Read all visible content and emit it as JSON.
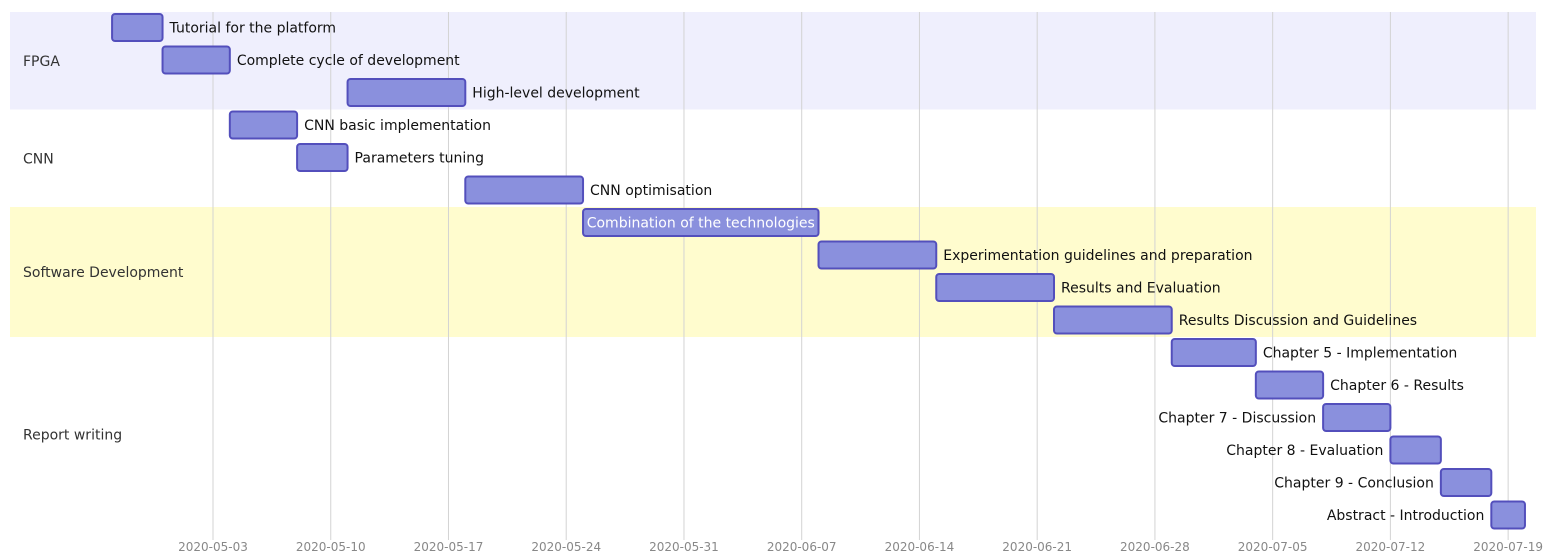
{
  "chart_data": {
    "type": "gantt",
    "title": "",
    "sections": [
      {
        "name": "FPGA",
        "color": "#efeffd"
      },
      {
        "name": "CNN",
        "color": "#ffffff"
      },
      {
        "name": "Software Development",
        "color": "#fffcce"
      },
      {
        "name": "Report writing",
        "color": "#ffffff"
      }
    ],
    "tasks": [
      {
        "name": "Tutorial for the platform",
        "section": 0,
        "start": "2020-04-27",
        "end": "2020-04-30"
      },
      {
        "name": "Complete cycle of development",
        "section": 0,
        "start": "2020-04-30",
        "end": "2020-05-04"
      },
      {
        "name": "High-level development",
        "section": 0,
        "start": "2020-05-11",
        "end": "2020-05-18"
      },
      {
        "name": "CNN basic implementation",
        "section": 1,
        "start": "2020-05-04",
        "end": "2020-05-08"
      },
      {
        "name": "Parameters tuning",
        "section": 1,
        "start": "2020-05-08",
        "end": "2020-05-11"
      },
      {
        "name": "CNN optimisation",
        "section": 1,
        "start": "2020-05-18",
        "end": "2020-05-25"
      },
      {
        "name": "Combination of the technologies",
        "section": 2,
        "start": "2020-05-25",
        "end": "2020-06-08"
      },
      {
        "name": "Experimentation guidelines and preparation",
        "section": 2,
        "start": "2020-06-08",
        "end": "2020-06-15"
      },
      {
        "name": "Results and Evaluation",
        "section": 2,
        "start": "2020-06-15",
        "end": "2020-06-22"
      },
      {
        "name": "Results Discussion and Guidelines",
        "section": 2,
        "start": "2020-06-22",
        "end": "2020-06-29"
      },
      {
        "name": "Chapter 5 - Implementation",
        "section": 3,
        "start": "2020-06-29",
        "end": "2020-07-04"
      },
      {
        "name": "Chapter 6 - Results",
        "section": 3,
        "start": "2020-07-04",
        "end": "2020-07-08"
      },
      {
        "name": "Chapter 7 - Discussion",
        "section": 3,
        "start": "2020-07-08",
        "end": "2020-07-12"
      },
      {
        "name": "Chapter 8 - Evaluation",
        "section": 3,
        "start": "2020-07-12",
        "end": "2020-07-15"
      },
      {
        "name": "Chapter 9 - Conclusion",
        "section": 3,
        "start": "2020-07-15",
        "end": "2020-07-18"
      },
      {
        "name": "Abstract - Introduction",
        "section": 3,
        "start": "2020-07-18",
        "end": "2020-07-20"
      }
    ],
    "x_ticks": [
      "2020-05-03",
      "2020-05-10",
      "2020-05-17",
      "2020-05-24",
      "2020-05-31",
      "2020-06-07",
      "2020-06-14",
      "2020-06-21",
      "2020-06-28",
      "2020-07-05",
      "2020-07-12",
      "2020-07-19"
    ],
    "grid": true,
    "colors": {
      "bar_fill": "#8a90dd",
      "bar_stroke": "#534fbc",
      "grid": "#d3d3d3"
    }
  }
}
